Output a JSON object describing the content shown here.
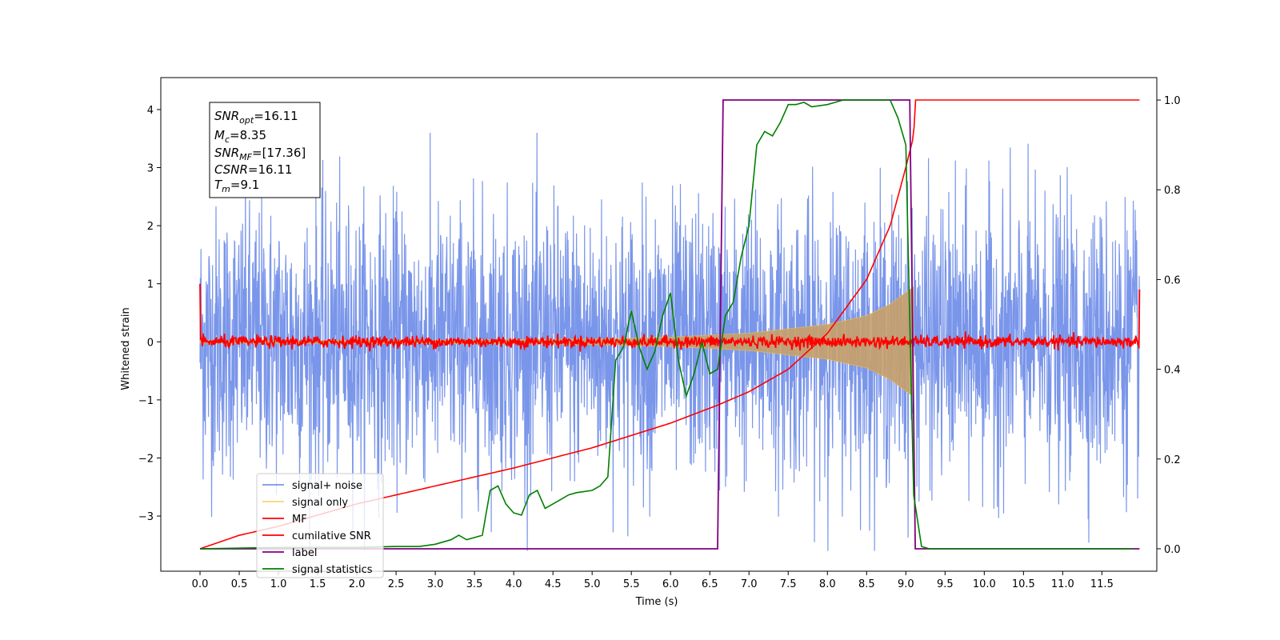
{
  "chart_data": {
    "type": "line",
    "xlabel": "Time (s)",
    "ylabel": "Whitened strain",
    "xlim": [
      -0.5,
      12.2
    ],
    "ylim": [
      -3.95,
      4.55
    ],
    "y2lim": [
      -0.05,
      1.05
    ],
    "x_ticks": [
      0.0,
      0.5,
      1.0,
      1.5,
      2.0,
      2.5,
      3.0,
      3.5,
      4.0,
      4.5,
      5.0,
      5.5,
      6.0,
      6.5,
      7.0,
      7.5,
      8.0,
      8.5,
      9.0,
      9.5,
      10.0,
      10.5,
      11.0,
      11.5
    ],
    "x_tick_labels": [
      "0.0",
      "0.5",
      "1.0",
      "1.5",
      "2.0",
      "2.5",
      "3.0",
      "3.5",
      "4.0",
      "4.5",
      "5.0",
      "5.5",
      "6.0",
      "6.5",
      "7.0",
      "7.5",
      "8.0",
      "8.5",
      "9.0",
      "9.5",
      "10.0",
      "10.5",
      "11.0",
      "11.5"
    ],
    "y_ticks": [
      -3,
      -2,
      -1,
      0,
      1,
      2,
      3,
      4
    ],
    "y_tick_labels": [
      "−3",
      "−2",
      "−1",
      "0",
      "1",
      "2",
      "3",
      "4"
    ],
    "y2_ticks": [
      0.0,
      0.2,
      0.4,
      0.6,
      0.8,
      1.0
    ],
    "y2_tick_labels": [
      "0.0",
      "0.2",
      "0.4",
      "0.6",
      "0.8",
      "1.0"
    ],
    "annotation": [
      {
        "main": "SNR",
        "sub": "opt",
        "rest": "=16.11"
      },
      {
        "main": "M",
        "sub": "c",
        "rest": "=8.35"
      },
      {
        "main": "SNR",
        "sub": "MF",
        "rest": "=[17.36]"
      },
      {
        "main": "CSNR",
        "sub": "",
        "rest": "=16.11"
      },
      {
        "main": "T",
        "sub": "m",
        "rest": "=9.1"
      }
    ],
    "legend_position": "lower-left",
    "legend": [
      {
        "label": "signal+ noise",
        "color": "#4169e1",
        "opacity": 0.7
      },
      {
        "label": "signal only",
        "color": "#f5c242",
        "opacity": 0.7
      },
      {
        "label": "MF",
        "color": "#ff0000",
        "opacity": 1
      },
      {
        "label": "cumilative SNR",
        "color": "#ff0000",
        "opacity": 1
      },
      {
        "label": "label",
        "color": "#800080",
        "opacity": 1
      },
      {
        "label": "signal statistics",
        "color": "#008000",
        "opacity": 1
      }
    ],
    "signal_noise": {
      "t_start": 0.0,
      "t_end": 11.98,
      "amplitude_sigma": 1.0,
      "peak_range": [
        -3.6,
        3.6
      ]
    },
    "signal_only": {
      "t_start": 0.0,
      "t_end": 9.1,
      "envelope": [
        [
          0.0,
          0.02
        ],
        [
          3.0,
          0.03
        ],
        [
          5.0,
          0.05
        ],
        [
          6.0,
          0.08
        ],
        [
          7.0,
          0.15
        ],
        [
          8.0,
          0.3
        ],
        [
          8.5,
          0.45
        ],
        [
          8.8,
          0.65
        ],
        [
          9.0,
          0.85
        ],
        [
          9.1,
          0.95
        ]
      ]
    },
    "mf": {
      "t_start": 0.0,
      "t_end": 11.98,
      "baseline": 0.0,
      "noise": 0.05,
      "edge_values": [
        1.0,
        0.9
      ]
    },
    "cumulative_snr": {
      "axis": "right",
      "points": [
        [
          0.0,
          0.0
        ],
        [
          0.5,
          0.03
        ],
        [
          1.0,
          0.05
        ],
        [
          2.0,
          0.1
        ],
        [
          3.0,
          0.14
        ],
        [
          4.0,
          0.18
        ],
        [
          5.0,
          0.225
        ],
        [
          6.0,
          0.28
        ],
        [
          6.6,
          0.32
        ],
        [
          7.0,
          0.35
        ],
        [
          7.5,
          0.4
        ],
        [
          8.0,
          0.48
        ],
        [
          8.5,
          0.6
        ],
        [
          8.8,
          0.72
        ],
        [
          9.0,
          0.85
        ],
        [
          9.1,
          0.92
        ],
        [
          9.12,
          1.0
        ],
        [
          11.98,
          1.0
        ]
      ]
    },
    "label_series": {
      "axis": "right",
      "points": [
        [
          0.0,
          0.0
        ],
        [
          6.6,
          0.0
        ],
        [
          6.67,
          1.0
        ],
        [
          9.05,
          1.0
        ],
        [
          9.12,
          0.0
        ],
        [
          11.98,
          0.0
        ]
      ]
    },
    "signal_statistics": {
      "axis": "right",
      "points": [
        [
          0.0,
          0.0
        ],
        [
          1.0,
          0.003
        ],
        [
          2.0,
          0.003
        ],
        [
          2.5,
          0.005
        ],
        [
          2.8,
          0.005
        ],
        [
          3.0,
          0.01
        ],
        [
          3.2,
          0.02
        ],
        [
          3.3,
          0.03
        ],
        [
          3.4,
          0.02
        ],
        [
          3.6,
          0.03
        ],
        [
          3.7,
          0.13
        ],
        [
          3.8,
          0.14
        ],
        [
          3.9,
          0.1
        ],
        [
          4.0,
          0.08
        ],
        [
          4.1,
          0.075
        ],
        [
          4.2,
          0.12
        ],
        [
          4.3,
          0.13
        ],
        [
          4.4,
          0.09
        ],
        [
          4.5,
          0.1
        ],
        [
          4.6,
          0.11
        ],
        [
          4.7,
          0.12
        ],
        [
          4.8,
          0.125
        ],
        [
          5.0,
          0.13
        ],
        [
          5.1,
          0.14
        ],
        [
          5.2,
          0.16
        ],
        [
          5.3,
          0.42
        ],
        [
          5.4,
          0.45
        ],
        [
          5.5,
          0.53
        ],
        [
          5.6,
          0.45
        ],
        [
          5.7,
          0.4
        ],
        [
          5.8,
          0.44
        ],
        [
          5.9,
          0.52
        ],
        [
          6.0,
          0.57
        ],
        [
          6.1,
          0.42
        ],
        [
          6.2,
          0.34
        ],
        [
          6.3,
          0.39
        ],
        [
          6.4,
          0.46
        ],
        [
          6.5,
          0.39
        ],
        [
          6.6,
          0.4
        ],
        [
          6.7,
          0.52
        ],
        [
          6.8,
          0.55
        ],
        [
          6.9,
          0.65
        ],
        [
          7.0,
          0.72
        ],
        [
          7.1,
          0.9
        ],
        [
          7.2,
          0.93
        ],
        [
          7.3,
          0.92
        ],
        [
          7.4,
          0.95
        ],
        [
          7.5,
          0.99
        ],
        [
          7.6,
          0.99
        ],
        [
          7.7,
          0.995
        ],
        [
          7.8,
          0.985
        ],
        [
          8.0,
          0.99
        ],
        [
          8.2,
          1.0
        ],
        [
          8.5,
          1.0
        ],
        [
          8.8,
          1.0
        ],
        [
          8.9,
          0.96
        ],
        [
          9.0,
          0.9
        ],
        [
          9.1,
          0.12
        ],
        [
          9.2,
          0.005
        ],
        [
          9.3,
          0.0
        ],
        [
          11.9,
          0.0
        ]
      ]
    }
  }
}
